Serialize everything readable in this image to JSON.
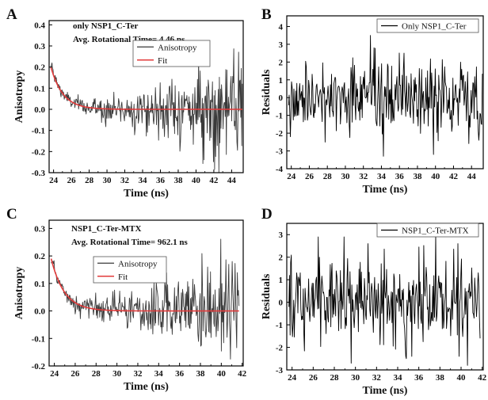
{
  "chart_data": [
    {
      "panel": "A",
      "type": "line",
      "annotations": [
        "only NSP1_C-Ter",
        "Avg. Rotational Time= 4.46 ns"
      ],
      "xlabel": "Time (ns)",
      "ylabel": "Anisotropy",
      "xlim": [
        23.5,
        45.3
      ],
      "ylim": [
        -0.3,
        0.42
      ],
      "xticks": [
        24,
        26,
        28,
        30,
        32,
        34,
        36,
        38,
        40,
        42,
        44
      ],
      "yticks": [
        -0.3,
        -0.2,
        -0.1,
        0.0,
        0.1,
        0.2,
        0.3,
        0.4
      ],
      "ytick_labels": [
        "-0.3",
        "-0.2",
        "-0.1",
        "0.0",
        "0.1",
        "0.2",
        "0.3",
        "0.4"
      ],
      "legend": {
        "position": "top-right",
        "entries": [
          "Anisotropy",
          "Fit"
        ]
      },
      "series": [
        {
          "name": "Anisotropy",
          "color": "#3a3a3a",
          "kind": "noisy-decay",
          "x_range": [
            23.7,
            45.2
          ],
          "amplitude": 0.21,
          "tau": 1.3,
          "baseline": 0.0,
          "noise_start": 0.015,
          "noise_end": 0.13,
          "points": 360
        },
        {
          "name": "Fit",
          "color": "#e23b3b",
          "kind": "fit",
          "x_range": [
            23.7,
            45.2
          ],
          "amplitude": 0.2,
          "tau": 1.35,
          "baseline": 0.0
        }
      ]
    },
    {
      "panel": "B",
      "type": "line",
      "xlabel": "Time (ns)",
      "ylabel": "Residuals",
      "xlim": [
        23.5,
        45.3
      ],
      "ylim": [
        -4,
        4.6
      ],
      "xticks": [
        24,
        26,
        28,
        30,
        32,
        34,
        36,
        38,
        40,
        42,
        44
      ],
      "yticks": [
        -4,
        -3,
        -2,
        -1,
        0,
        1,
        2,
        3,
        4
      ],
      "ytick_labels": [
        "-4",
        "-3",
        "-2",
        "-1",
        "0",
        "1",
        "2",
        "3",
        "4"
      ],
      "legend": {
        "position": "top-right",
        "entries": [
          "Only NSP1_C-Ter"
        ]
      },
      "series": [
        {
          "name": "Only NSP1_C-Ter",
          "color": "#000000",
          "kind": "residuals",
          "x_range": [
            23.7,
            45.2
          ],
          "sigma": 1.05,
          "points": 330,
          "spikes": [
            [
              32.8,
              3.5
            ],
            [
              34.2,
              -3.3
            ],
            [
              39.8,
              -3.2
            ],
            [
              23.9,
              -2.2
            ],
            [
              36.5,
              2.5
            ],
            [
              44.8,
              -2.4
            ]
          ]
        }
      ]
    },
    {
      "panel": "C",
      "type": "line",
      "annotations": [
        "NSP1_C-Ter-MTX",
        "Avg. Rotational Time= 962.1 ns"
      ],
      "xlabel": "Time (ns)",
      "ylabel": "Anisotropy",
      "xlim": [
        23.5,
        42.1
      ],
      "ylim": [
        -0.2,
        0.33
      ],
      "xticks": [
        24,
        26,
        28,
        30,
        32,
        34,
        36,
        38,
        40,
        42
      ],
      "yticks": [
        -0.2,
        -0.1,
        0.0,
        0.1,
        0.2,
        0.3
      ],
      "ytick_labels": [
        "-0.2",
        "-0.1",
        "0.0",
        "0.1",
        "0.2",
        "0.3"
      ],
      "legend": {
        "position": "top-right",
        "entries": [
          "Anisotropy",
          "Fit"
        ]
      },
      "series": [
        {
          "name": "Anisotropy",
          "color": "#3a3a3a",
          "kind": "noisy-decay",
          "x_range": [
            23.7,
            41.7
          ],
          "amplitude": 0.19,
          "tau": 1.2,
          "baseline": 0.0,
          "noise_start": 0.012,
          "noise_end": 0.1,
          "points": 330
        },
        {
          "name": "Fit",
          "color": "#e23b3b",
          "kind": "fit",
          "x_range": [
            23.7,
            41.7
          ],
          "amplitude": 0.19,
          "tau": 1.25,
          "baseline": 0.0
        }
      ]
    },
    {
      "panel": "D",
      "type": "line",
      "xlabel": "Time (ns)",
      "ylabel": "Residuals",
      "xlim": [
        23.5,
        42.1
      ],
      "ylim": [
        -3,
        3.5
      ],
      "xticks": [
        24,
        26,
        28,
        30,
        32,
        34,
        36,
        38,
        40,
        42
      ],
      "yticks": [
        -3,
        -2,
        -1,
        0,
        1,
        2,
        3
      ],
      "ytick_labels": [
        "-3",
        "-2",
        "-1",
        "0",
        "1",
        "2",
        "3"
      ],
      "legend": {
        "position": "top-right",
        "entries": [
          "NSP1_C-Ter-MTX"
        ]
      },
      "series": [
        {
          "name": "NSP1_C-Ter-MTX",
          "color": "#000000",
          "kind": "residuals",
          "x_range": [
            23.7,
            41.8
          ],
          "sigma": 0.95,
          "points": 320,
          "spikes": [
            [
              26.5,
              2.9
            ],
            [
              28.9,
              2.9
            ],
            [
              29.6,
              -2.7
            ],
            [
              37.6,
              3.0
            ],
            [
              40.6,
              -2.8
            ],
            [
              31.2,
              2.6
            ],
            [
              34.8,
              -2.5
            ]
          ]
        }
      ]
    }
  ]
}
